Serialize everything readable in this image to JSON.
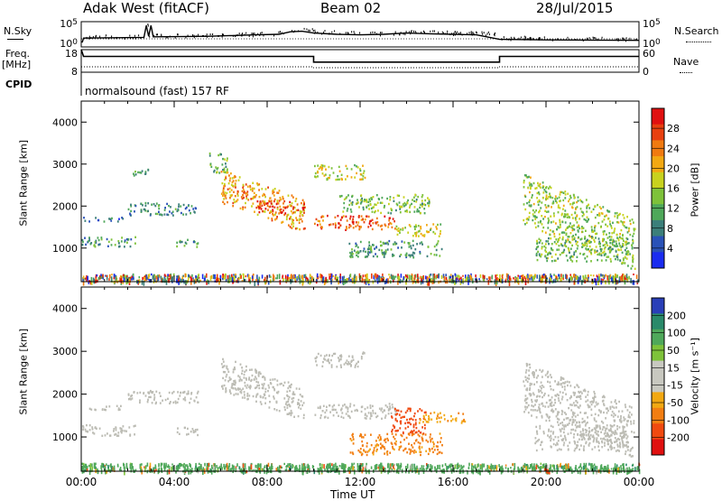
{
  "header": {
    "station": "Adak West (fitACF)",
    "beam": "Beam 02",
    "date": "28/Jul/2015"
  },
  "side_labels": {
    "nsky": "N.Sky",
    "nsearch": "N.Search",
    "freq": "Freq.",
    "freq_unit": "[MHz]",
    "nave": "Nave",
    "cpid": "CPID"
  },
  "cpid_text": "normalsound (fast) 157 RF",
  "colors": {
    "power_scale": [
      "#1a2cf0",
      "#2a52b8",
      "#3c7f7a",
      "#4fa85a",
      "#7ec23a",
      "#c8d21e",
      "#f2a812",
      "#f07a10",
      "#e84010",
      "#e01010"
    ],
    "velocity_scale": [
      "#e01010",
      "#f04a10",
      "#f27e12",
      "#f2a812",
      "#c8c8c0",
      "#c8c8c0",
      "#7ec23a",
      "#4fa85a",
      "#2a8a6a",
      "#2a3fb8"
    ],
    "ground_scatter": "#bcbcb4"
  },
  "chart_data": [
    {
      "type": "line",
      "name": "noise-panel",
      "left_axis_ticks": [
        "10^5",
        "10^0"
      ],
      "right_axis_ticks": [
        "10^5",
        "10^0"
      ],
      "x_range_hours": [
        0,
        24
      ],
      "nsky_level": [
        [
          0,
          0.2
        ],
        [
          0.05,
          0.2
        ],
        [
          0.1,
          0.35
        ],
        [
          2.7,
          0.38
        ],
        [
          2.8,
          0.85
        ],
        [
          2.9,
          0.42
        ],
        [
          3.0,
          0.85
        ],
        [
          3.1,
          0.4
        ],
        [
          5.5,
          0.42
        ],
        [
          6.5,
          0.45
        ],
        [
          7.5,
          0.48
        ],
        [
          8.5,
          0.5
        ],
        [
          9.0,
          0.6
        ],
        [
          9.5,
          0.62
        ],
        [
          10.0,
          0.55
        ],
        [
          11.0,
          0.5
        ],
        [
          12.0,
          0.48
        ],
        [
          13.0,
          0.5
        ],
        [
          14.0,
          0.55
        ],
        [
          15.0,
          0.52
        ],
        [
          16.0,
          0.5
        ],
        [
          17.0,
          0.48
        ],
        [
          18.0,
          0.3
        ],
        [
          20.0,
          0.28
        ],
        [
          22.0,
          0.27
        ],
        [
          24.0,
          0.26
        ]
      ]
    },
    {
      "type": "line",
      "name": "frequency-panel",
      "left_axis_ticks": [
        "18",
        "8"
      ],
      "right_axis_ticks": [
        "60",
        "0"
      ],
      "x_range_hours": [
        0,
        24
      ],
      "freq_mhz": [
        [
          0,
          18
        ],
        [
          0.1,
          15
        ],
        [
          10.0,
          15
        ],
        [
          10.0,
          12.5
        ],
        [
          18.0,
          12.5
        ],
        [
          18.0,
          15
        ],
        [
          24.0,
          15
        ]
      ],
      "nave": [
        [
          0,
          10
        ],
        [
          10.0,
          10
        ],
        [
          10.0,
          8
        ],
        [
          18.0,
          8
        ],
        [
          18.0,
          10
        ],
        [
          24.0,
          10
        ]
      ]
    },
    {
      "type": "heatmap",
      "name": "power",
      "ylabel": "Slant Range [km]",
      "colorbar_label": "Power [dB]",
      "colorbar_ticks": [
        "28",
        "24",
        "20",
        "16",
        "12",
        "8",
        "4"
      ],
      "colorbar_range": [
        0,
        30
      ],
      "y_ticks": [
        "1000",
        "2000",
        "3000",
        "4000"
      ],
      "ylim": [
        200,
        4500
      ],
      "x_range_hours": [
        0,
        24
      ],
      "regions": [
        {
          "t0": 0.0,
          "t1": 2.3,
          "r0": 1050,
          "r1": 1300,
          "p": 9
        },
        {
          "t0": 0.0,
          "t1": 1.8,
          "r0": 1650,
          "r1": 1750,
          "p": 7
        },
        {
          "t0": 2.2,
          "t1": 3.2,
          "r0": 2750,
          "r1": 2900,
          "p": 11
        },
        {
          "t0": 2.0,
          "t1": 5.0,
          "r0": 1800,
          "r1": 2100,
          "p": 8
        },
        {
          "t0": 4.0,
          "t1": 5.0,
          "r0": 1050,
          "r1": 1250,
          "p": 10
        },
        {
          "t0": 5.5,
          "t1": 6.3,
          "r0": 2800,
          "r1": 3300,
          "p": 12
        },
        {
          "t0": 6.0,
          "t1": 9.6,
          "r0": 2100,
          "r1": 2900,
          "p": 20,
          "slope": -200
        },
        {
          "t0": 7.5,
          "t1": 9.6,
          "r0": 1850,
          "r1": 2150,
          "p": 27
        },
        {
          "t0": 10.0,
          "t1": 13.5,
          "r0": 1450,
          "r1": 1800,
          "p": 24
        },
        {
          "t0": 10.0,
          "t1": 12.2,
          "r0": 2650,
          "r1": 3000,
          "p": 16
        },
        {
          "t0": 11.0,
          "t1": 15.0,
          "r0": 1850,
          "r1": 2300,
          "p": 13
        },
        {
          "t0": 11.5,
          "t1": 15.5,
          "r0": 800,
          "r1": 1200,
          "p": 10
        },
        {
          "t0": 13.5,
          "t1": 15.5,
          "r0": 1300,
          "r1": 1600,
          "p": 16
        },
        {
          "t0": 19.0,
          "t1": 23.8,
          "r0": 1600,
          "r1": 2800,
          "p": 14,
          "slope": -230
        },
        {
          "t0": 19.5,
          "t1": 23.5,
          "r0": 700,
          "r1": 1300,
          "p": 12
        }
      ]
    },
    {
      "type": "heatmap",
      "name": "velocity",
      "ylabel": "Slant Range [km]",
      "colorbar_label": "Velocity [m s⁻¹]",
      "colorbar_ticks": [
        "200",
        "100",
        "50",
        "15",
        "-15",
        "-50",
        "-100",
        "-200"
      ],
      "colorbar_range": [
        -250,
        250
      ],
      "y_ticks": [
        "1000",
        "2000",
        "3000",
        "4000"
      ],
      "ylim": [
        200,
        4500
      ],
      "x_range_hours": [
        0,
        24
      ],
      "regions": [
        {
          "t0": 0.0,
          "t1": 2.3,
          "r0": 1050,
          "r1": 1300,
          "v": 0
        },
        {
          "t0": 0.0,
          "t1": 1.8,
          "r0": 1650,
          "r1": 1750,
          "v": 0
        },
        {
          "t0": 2.0,
          "t1": 5.0,
          "r0": 1800,
          "r1": 2100,
          "v": 0
        },
        {
          "t0": 4.0,
          "t1": 5.0,
          "r0": 1050,
          "r1": 1250,
          "v": 0
        },
        {
          "t0": 6.0,
          "t1": 9.6,
          "r0": 2100,
          "r1": 2900,
          "v": 0,
          "slope": -200
        },
        {
          "t0": 10.0,
          "t1": 13.5,
          "r0": 1450,
          "r1": 1800,
          "v": 0
        },
        {
          "t0": 10.0,
          "t1": 12.2,
          "r0": 2650,
          "r1": 3000,
          "v": 0
        },
        {
          "t0": 11.5,
          "t1": 15.5,
          "r0": 600,
          "r1": 1100,
          "v": -60
        },
        {
          "t0": 13.3,
          "t1": 14.8,
          "r0": 1100,
          "r1": 1700,
          "v": -150
        },
        {
          "t0": 14.5,
          "t1": 16.5,
          "r0": 1350,
          "r1": 1600,
          "v": -40
        },
        {
          "t0": 19.0,
          "t1": 23.8,
          "r0": 1600,
          "r1": 2800,
          "v": 0,
          "slope": -230
        },
        {
          "t0": 19.5,
          "t1": 23.5,
          "r0": 700,
          "r1": 1300,
          "v": 0
        }
      ]
    }
  ],
  "x_axis": {
    "ticks": [
      "00:00",
      "04:00",
      "08:00",
      "12:00",
      "16:00",
      "20:00",
      "00:00"
    ],
    "label": "Time UT"
  }
}
